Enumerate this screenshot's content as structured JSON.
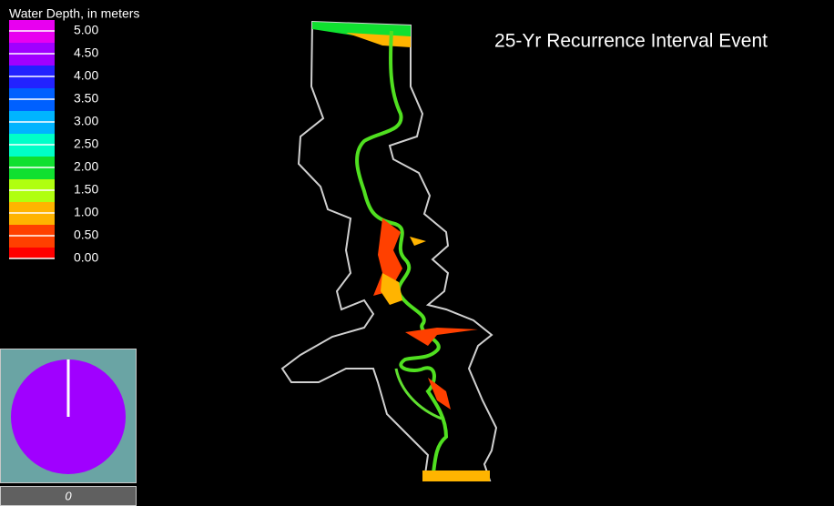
{
  "legend": {
    "title": "Water Depth, in meters",
    "entries": [
      {
        "label": "5.00",
        "color": "#e800f0"
      },
      {
        "label": "4.50",
        "color": "#a000ff"
      },
      {
        "label": "4.00",
        "color": "#2222ff"
      },
      {
        "label": "3.50",
        "color": "#0060ff"
      },
      {
        "label": "3.00",
        "color": "#00b4ff"
      },
      {
        "label": "2.50",
        "color": "#00ffc8"
      },
      {
        "label": "2.00",
        "color": "#10e030"
      },
      {
        "label": "1.50",
        "color": "#b0ff10"
      },
      {
        "label": "1.00",
        "color": "#ffb400"
      },
      {
        "label": "0.50",
        "color": "#ff4000"
      },
      {
        "label": "0.00",
        "color": "#ff0000"
      }
    ]
  },
  "title": "25-Yr Recurrence Interval Event",
  "clock": {
    "label": "0"
  }
}
